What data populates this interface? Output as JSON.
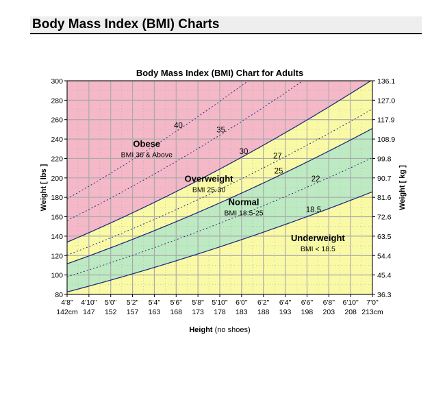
{
  "page": {
    "title": "Body Mass Index (BMI) Charts"
  },
  "colors": {
    "obese": "#f4b8c8",
    "overweight": "#fafaa6",
    "normal": "#bdeac2",
    "underweight": "#fafaa6",
    "curve": "#1f2e7a",
    "grid": "#aaaaaa"
  },
  "chart_data": {
    "type": "area",
    "title": "Body Mass Index (BMI) Chart for Adults",
    "xlabel_main": "Height",
    "xlabel_note": "(no shoes)",
    "ylabel": "Weight [ lbs ]",
    "ylabel_right": "Weight [ kg ]",
    "x_range_inches": [
      56,
      84
    ],
    "ylim": [
      80,
      300
    ],
    "grid": true,
    "x_ticks": [
      {
        "in": 56,
        "ft": "4'8\"",
        "cm": "142cm"
      },
      {
        "in": 58,
        "ft": "4'10\"",
        "cm": "147"
      },
      {
        "in": 60,
        "ft": "5'0\"",
        "cm": "152"
      },
      {
        "in": 62,
        "ft": "5'2\"",
        "cm": "157"
      },
      {
        "in": 64,
        "ft": "5'4\"",
        "cm": "163"
      },
      {
        "in": 66,
        "ft": "5'6\"",
        "cm": "168"
      },
      {
        "in": 68,
        "ft": "5'8\"",
        "cm": "173"
      },
      {
        "in": 70,
        "ft": "5'10\"",
        "cm": "178"
      },
      {
        "in": 72,
        "ft": "6'0\"",
        "cm": "183"
      },
      {
        "in": 74,
        "ft": "6'2\"",
        "cm": "188"
      },
      {
        "in": 76,
        "ft": "6'4\"",
        "cm": "193"
      },
      {
        "in": 78,
        "ft": "6'6\"",
        "cm": "198"
      },
      {
        "in": 80,
        "ft": "6'8\"",
        "cm": "203"
      },
      {
        "in": 82,
        "ft": "6'10\"",
        "cm": "208"
      },
      {
        "in": 84,
        "ft": "7'0\"",
        "cm": "213cm"
      }
    ],
    "y_ticks_left": [
      80,
      100,
      120,
      140,
      160,
      180,
      200,
      220,
      240,
      260,
      280,
      300
    ],
    "y_ticks_right": [
      "36.3",
      "45.4",
      "54.4",
      "63.5",
      "72.6",
      "81.6",
      "90.7",
      "99.8",
      "108.9",
      "117.9",
      "127.0",
      "136.1"
    ],
    "bmi_lines": [
      {
        "bmi": 18.5,
        "style": "solid",
        "label": "18.5"
      },
      {
        "bmi": 22,
        "style": "dotted",
        "label": "22"
      },
      {
        "bmi": 25,
        "style": "solid",
        "label": "25"
      },
      {
        "bmi": 27,
        "style": "dotted",
        "label": "27"
      },
      {
        "bmi": 30,
        "style": "solid",
        "label": "30"
      },
      {
        "bmi": 35,
        "style": "dotted",
        "label": "35"
      },
      {
        "bmi": 40,
        "style": "dotted",
        "label": "40"
      }
    ],
    "bmi_label_positions_in": {
      "18.5": 78.6,
      "22": 78.8,
      "25": 75.4,
      "27": 75.3,
      "30": 72.2,
      "35": 70.1,
      "40": 66.2
    },
    "zones": [
      {
        "name": "Obese",
        "range": "BMI 30 & Above",
        "at_in": 63.3,
        "at_lbs": 232
      },
      {
        "name": "Overweight",
        "range": "BMI 25-30",
        "at_in": 69.0,
        "at_lbs": 196
      },
      {
        "name": "Normal",
        "range": "BMI 18.5-25",
        "at_in": 72.2,
        "at_lbs": 172
      },
      {
        "name": "Underweight",
        "range": "BMI < 18.5",
        "at_in": 79.0,
        "at_lbs": 135
      }
    ]
  }
}
